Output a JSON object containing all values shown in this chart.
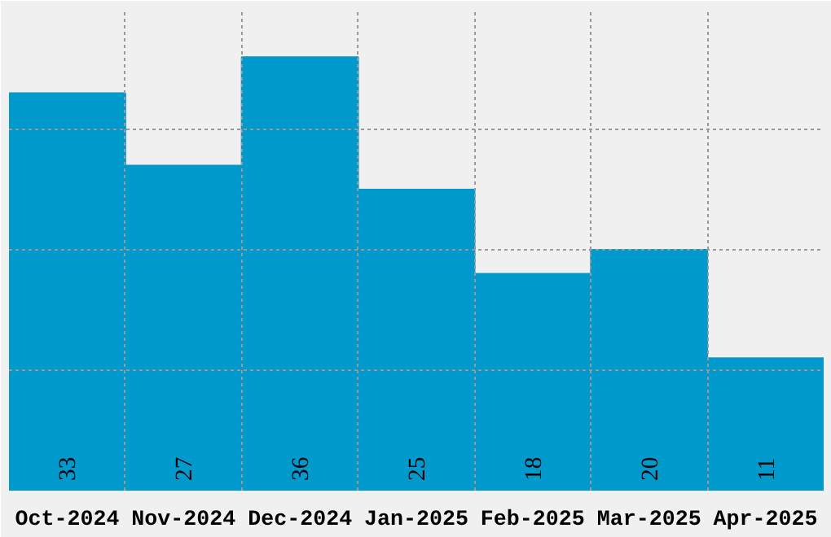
{
  "chart_data": {
    "type": "bar",
    "categories": [
      "Oct-2024",
      "Nov-2024",
      "Dec-2024",
      "Jan-2025",
      "Feb-2025",
      "Mar-2025",
      "Apr-2025"
    ],
    "values": [
      33,
      27,
      36,
      25,
      18,
      20,
      11
    ],
    "color": "#0099cc",
    "ylim": [
      0,
      40
    ],
    "yticks": [
      {
        "value": 10,
        "label": null
      },
      {
        "value": 20,
        "label": null
      },
      {
        "value": 30,
        "label": null
      }
    ],
    "tick_labels": "x",
    "grid": true,
    "data_labels": true
  }
}
